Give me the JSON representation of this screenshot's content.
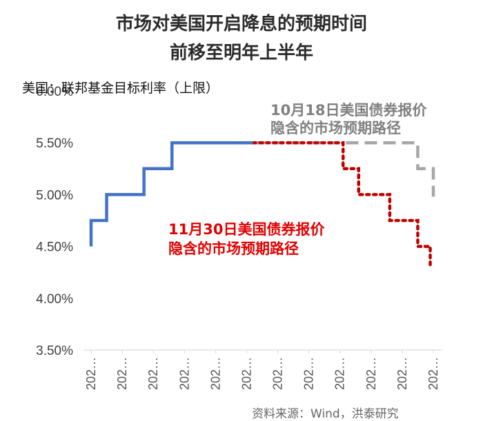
{
  "chart_data": {
    "type": "line",
    "title": "市场对美国开启降息的预期时间",
    "subtitle": "前移至明年上半年",
    "ylabel": "美国：联邦基金目标利率（上限）",
    "ylim": [
      3.5,
      6.0
    ],
    "y_ticks": [
      "3.50%",
      "4.00%",
      "4.50%",
      "5.00%",
      "5.50%",
      "6.00%"
    ],
    "y_tick_values": [
      3.5,
      4.0,
      4.5,
      5.0,
      5.5,
      6.0
    ],
    "x_tick_labels": [
      "202…",
      "202…",
      "202…",
      "202…",
      "202…",
      "202…",
      "202…",
      "202…",
      "202…",
      "202…",
      "202…",
      "202…"
    ],
    "step_index_count": 11,
    "series": [
      {
        "name": "美国：联邦基金目标利率（上限）",
        "style": "solid",
        "color": "#4472c4",
        "points": [
          [
            0,
            4.5
          ],
          [
            0,
            4.75
          ],
          [
            0.5,
            4.75
          ],
          [
            0.5,
            5.0
          ],
          [
            1.7,
            5.0
          ],
          [
            1.7,
            5.25
          ],
          [
            2.6,
            5.25
          ],
          [
            2.6,
            5.5
          ],
          [
            5.2,
            5.5
          ]
        ]
      },
      {
        "name": "10月18日美国债券报价隐含的市场预期路径",
        "style": "dashed",
        "color": "#a6a6a6",
        "points": [
          [
            5.2,
            5.5
          ],
          [
            10.5,
            5.5
          ],
          [
            10.5,
            5.25
          ],
          [
            11.0,
            5.25
          ],
          [
            11.0,
            4.98
          ]
        ]
      },
      {
        "name": "11月30日美国债券报价隐含的市场预期路径",
        "style": "dotted",
        "color": "#c00000",
        "points": [
          [
            5.2,
            5.5
          ],
          [
            8.1,
            5.5
          ],
          [
            8.1,
            5.25
          ],
          [
            8.6,
            5.25
          ],
          [
            8.6,
            5.0
          ],
          [
            9.6,
            5.0
          ],
          [
            9.6,
            4.75
          ],
          [
            10.5,
            4.75
          ],
          [
            10.5,
            4.5
          ],
          [
            10.9,
            4.5
          ],
          [
            10.9,
            4.3
          ]
        ]
      }
    ],
    "annotations": {
      "oct": {
        "line1": "10月18日美国债券报价",
        "line2": "隐含的市场预期路径",
        "color": "#808080"
      },
      "nov": {
        "line1": "11月30日美国债券报价",
        "line2": "隐含的市场预期路径",
        "color": "#e00000"
      }
    },
    "source": "资料来源：Wind，洪泰研究"
  }
}
